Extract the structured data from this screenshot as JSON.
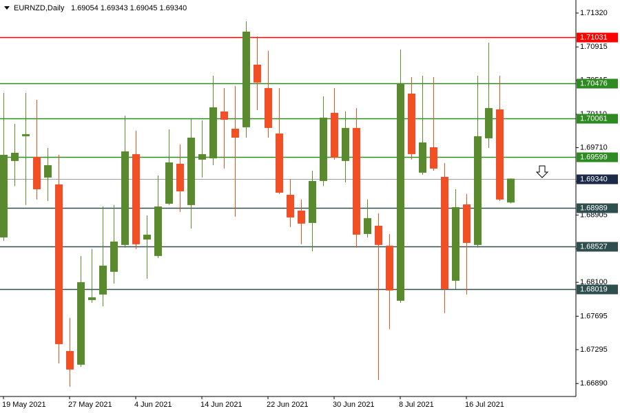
{
  "chart_data": {
    "type": "candlestick",
    "title": "EURNZD,Daily",
    "ohlc_label": "1.69054 1.69343 1.69045 1.69340",
    "categories": [
      "19 May 2021",
      null,
      null,
      null,
      null,
      null,
      "27 May 2021",
      null,
      null,
      null,
      null,
      null,
      "4 Jun 2021",
      null,
      null,
      null,
      null,
      null,
      "14 Jun 2021",
      null,
      null,
      null,
      null,
      null,
      "22 Jun 2021",
      null,
      null,
      null,
      null,
      null,
      "30 Jun 2021",
      null,
      null,
      null,
      null,
      null,
      "8 Jul 2021",
      null,
      null,
      null,
      null,
      null,
      "16 Jul 2021",
      null,
      null,
      null,
      null
    ],
    "open": [
      1.68637,
      1.69551,
      1.69847,
      1.696,
      1.69353,
      1.69271,
      1.67279,
      1.67115,
      1.67888,
      1.67954,
      1.68226,
      1.68547,
      1.69633,
      1.68612,
      1.68415,
      1.6904,
      1.69518,
      1.69024,
      1.69567,
      1.69583,
      1.70143,
      1.69937,
      1.69954,
      1.70703,
      1.70423,
      1.6988,
      1.69147,
      1.68958,
      1.6881,
      1.69312,
      1.70127,
      1.69551,
      1.69946,
      1.68678,
      1.68777,
      1.68538,
      1.6788,
      1.70357,
      1.69411,
      1.69715,
      1.69361,
      1.68119,
      1.69032,
      1.68547,
      1.69822,
      1.70168,
      1.69054
    ],
    "high": [
      1.70365,
      1.69995,
      1.70365,
      1.70283,
      1.69707,
      1.69625,
      1.67674,
      1.68415,
      1.68497,
      1.69007,
      1.69024,
      1.70094,
      1.69913,
      1.689,
      1.69378,
      1.69929,
      1.69748,
      1.70061,
      1.70036,
      1.70571,
      1.70423,
      1.70448,
      1.71221,
      1.7104,
      1.70867,
      1.70423,
      1.69337,
      1.6909,
      1.69435,
      1.70324,
      1.70423,
      1.70143,
      1.70184,
      1.6909,
      1.68925,
      1.68678,
      1.70884,
      1.70555,
      1.70571,
      1.70555,
      1.69526,
      1.69213,
      1.69156,
      1.70571,
      1.70966,
      1.70571,
      1.69343
    ],
    "low": [
      1.68596,
      1.69254,
      1.69024,
      1.6909,
      1.69073,
      1.67131,
      1.66851,
      1.6709,
      1.67855,
      1.67814,
      1.68086,
      1.68514,
      1.68497,
      1.68143,
      1.6839,
      1.69024,
      1.68942,
      1.68744,
      1.69353,
      1.69501,
      1.6946,
      1.68884,
      1.6983,
      1.7016,
      1.6983,
      1.69156,
      1.68761,
      1.68555,
      1.68472,
      1.69254,
      1.69567,
      1.69295,
      1.68514,
      1.68637,
      1.66933,
      1.67542,
      1.67855,
      1.69567,
      1.69386,
      1.69435,
      1.67732,
      1.6802,
      1.67954,
      1.68514,
      1.69707,
      1.69073,
      1.69045
    ],
    "close": [
      1.69625,
      1.69649,
      1.69872,
      1.69213,
      1.69501,
      1.67361,
      1.67057,
      1.68102,
      1.67921,
      1.683,
      1.68588,
      1.69666,
      1.68555,
      1.6867,
      1.69007,
      1.69534,
      1.69188,
      1.6983,
      1.69633,
      1.70193,
      1.70044,
      1.6983,
      1.71098,
      1.70489,
      1.69946,
      1.69172,
      1.68876,
      1.68802,
      1.69312,
      1.70069,
      1.69592,
      1.69946,
      1.6867,
      1.68868,
      1.68547,
      1.68003,
      1.70481,
      1.69633,
      1.69773,
      1.6946,
      1.6802,
      1.68999,
      1.68571,
      1.69847,
      1.70184,
      1.6909,
      1.6934
    ],
    "up_color": "#5a8a2e",
    "down_color": "#f24f26",
    "ylim": [
      1.66735,
      1.71476
    ],
    "yticks": [
      {
        "value": 1.7132,
        "label": "1.71320"
      },
      {
        "value": 1.70915,
        "label": "1.70915"
      },
      {
        "value": 1.70515,
        "label": "1.70515"
      },
      {
        "value": 1.7011,
        "label": "1.70110"
      },
      {
        "value": 1.6971,
        "label": "1.69710"
      },
      {
        "value": 1.69305,
        "label": "1.69305"
      },
      {
        "value": 1.68905,
        "label": "1.68905"
      },
      {
        "value": 1.685,
        "label": "1.68500"
      },
      {
        "value": 1.681,
        "label": "1.68100"
      },
      {
        "value": 1.67695,
        "label": "1.67695"
      },
      {
        "value": 1.67295,
        "label": "1.67295"
      },
      {
        "value": 1.6689,
        "label": "1.66890"
      }
    ],
    "levels": [
      {
        "value": 1.71031,
        "label": "1.71031",
        "color": "#ff0000"
      },
      {
        "value": 1.70476,
        "label": "1.70476",
        "color": "#2e8b22"
      },
      {
        "value": 1.70061,
        "label": "1.70061",
        "color": "#2e8b22"
      },
      {
        "value": 1.69599,
        "label": "1.69599",
        "color": "#2e8b22"
      },
      {
        "value": 1.6934,
        "label": "1.69340",
        "color": "#1c2a4a"
      },
      {
        "value": 1.68989,
        "label": "1.68989",
        "color": "#2f4f4f"
      },
      {
        "value": 1.68527,
        "label": "1.68527",
        "color": "#2f4f4f"
      },
      {
        "value": 1.68019,
        "label": "1.68019",
        "color": "#2f4f4f"
      }
    ]
  }
}
